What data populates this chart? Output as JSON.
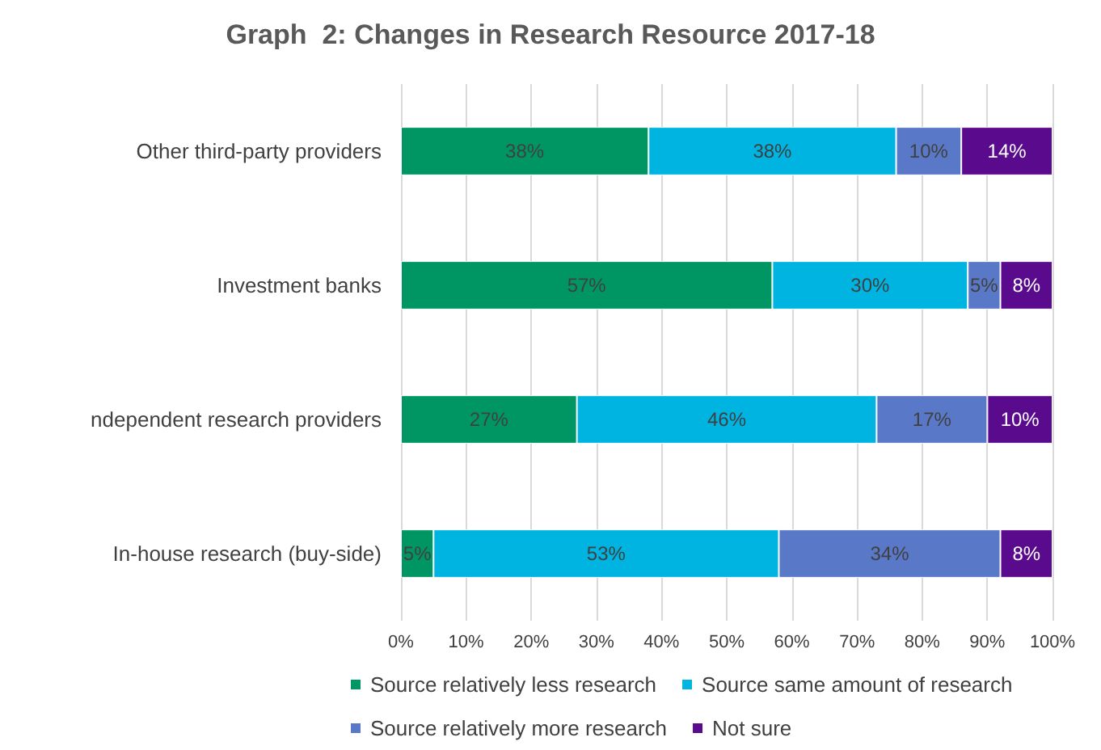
{
  "chart_data": {
    "type": "bar",
    "orientation": "horizontal",
    "stacked": true,
    "title": "Graph  2: Changes in Research Resource 2017-18",
    "categories": [
      "Other third-party providers",
      "Investment banks",
      "ndependent research providers",
      "In-house research (buy-side)"
    ],
    "series": [
      {
        "name": "Source relatively less research",
        "color": "#009664",
        "values": [
          38,
          57,
          27,
          5
        ],
        "value_labels": [
          "38%",
          "57%",
          "27%",
          "5%"
        ]
      },
      {
        "name": "Source same amount of research",
        "color": "#00b4e1",
        "values": [
          38,
          30,
          46,
          53
        ],
        "value_labels": [
          "38%",
          "30%",
          "46%",
          "53%"
        ]
      },
      {
        "name": "Source relatively more research",
        "color": "#5a78c8",
        "values": [
          10,
          5,
          17,
          34
        ],
        "value_labels": [
          "10%",
          "5%",
          "17%",
          "34%"
        ]
      },
      {
        "name": "Not sure",
        "color": "#5a0a8c",
        "values": [
          14,
          8,
          10,
          8
        ],
        "value_labels": [
          "14%",
          "8%",
          "10%",
          "8%"
        ]
      }
    ],
    "xlim": [
      0,
      100
    ],
    "xticks": [
      {
        "value": 0,
        "label": "0%"
      },
      {
        "value": 10,
        "label": "10%"
      },
      {
        "value": 20,
        "label": "20%"
      },
      {
        "value": 30,
        "label": "30%"
      },
      {
        "value": 40,
        "label": "40%"
      },
      {
        "value": 50,
        "label": "50%"
      },
      {
        "value": 60,
        "label": "60%"
      },
      {
        "value": 70,
        "label": "70%"
      },
      {
        "value": 80,
        "label": "80%"
      },
      {
        "value": 90,
        "label": "90%"
      },
      {
        "value": 100,
        "label": "100%"
      }
    ],
    "grid": "x",
    "legend": "bottom"
  }
}
